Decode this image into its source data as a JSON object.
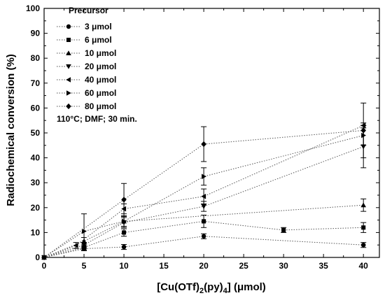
{
  "chart_data": {
    "type": "scatter",
    "xlabel": "[Cu(OTf)2(py)4] (μmol)",
    "xlabel_parts": {
      "a": "[Cu(OTf)",
      "b": "2",
      "c": "(py)",
      "d": "4",
      "e": "] (μmol)"
    },
    "ylabel": "Radiochemical conversion (%)",
    "xlim": [
      0,
      42
    ],
    "ylim": [
      0,
      100
    ],
    "xticks": [
      "0",
      "5",
      "10",
      "15",
      "20",
      "25",
      "30",
      "35",
      "40"
    ],
    "yticks": [
      "0",
      "10",
      "20",
      "30",
      "40",
      "50",
      "60",
      "70",
      "80",
      "90",
      "100"
    ],
    "legend_title": "Precursor",
    "legend_position": "top-left",
    "annotation": "110°C; DMF; 30 min.",
    "series": [
      {
        "name": "3 μmol",
        "marker": "circle",
        "points": [
          {
            "x": 0,
            "y": 0
          },
          {
            "x": 5,
            "y": 3.5,
            "err": 0.8
          },
          {
            "x": 10,
            "y": 4.2,
            "err": 1
          },
          {
            "x": 20,
            "y": 8.5,
            "err": 1
          },
          {
            "x": 40,
            "y": 5,
            "err": 1
          }
        ]
      },
      {
        "name": "6 μmol",
        "marker": "square",
        "points": [
          {
            "x": 0,
            "y": 0
          },
          {
            "x": 5,
            "y": 4,
            "err": 1
          },
          {
            "x": 10,
            "y": 10,
            "err": 1.5
          },
          {
            "x": 20,
            "y": 14.5,
            "err": 2.5
          },
          {
            "x": 30,
            "y": 11,
            "err": 1
          },
          {
            "x": 40,
            "y": 12,
            "err": 2
          }
        ]
      },
      {
        "name": "10 μmol",
        "marker": "triangle-up",
        "points": [
          {
            "x": 0,
            "y": 0
          },
          {
            "x": 5,
            "y": 6.5,
            "err": 1.5
          },
          {
            "x": 10,
            "y": 14.5,
            "err": 2
          },
          {
            "x": 40,
            "y": 21,
            "err": 2.5
          }
        ]
      },
      {
        "name": "20 μmol",
        "marker": "triangle-down",
        "points": [
          {
            "x": 0,
            "y": 0
          },
          {
            "x": 5,
            "y": 5,
            "err": 1
          },
          {
            "x": 10,
            "y": 14,
            "err": 2
          },
          {
            "x": 20,
            "y": 20.5,
            "err": 2
          },
          {
            "x": 40,
            "y": 44.5,
            "err": 8.5
          }
        ]
      },
      {
        "name": "40 μmol",
        "marker": "triangle-left",
        "points": [
          {
            "x": 0,
            "y": 0
          },
          {
            "x": 4,
            "y": 4.8,
            "err": 1.2
          },
          {
            "x": 10,
            "y": 19.5,
            "err": 2
          },
          {
            "x": 20,
            "y": 24.5,
            "err": 3
          },
          {
            "x": 40,
            "y": 53,
            "err": 1
          }
        ]
      },
      {
        "name": "60 μmol",
        "marker": "triangle-right",
        "points": [
          {
            "x": 0,
            "y": 0
          },
          {
            "x": 5,
            "y": 10.5,
            "err": 7
          },
          {
            "x": 10,
            "y": 14.5,
            "err": 2
          },
          {
            "x": 20,
            "y": 32.5,
            "err": 3.5
          },
          {
            "x": 40,
            "y": 49,
            "err": 4
          }
        ]
      },
      {
        "name": "80 μmol",
        "marker": "diamond",
        "points": [
          {
            "x": 0,
            "y": 0
          },
          {
            "x": 10,
            "y": 23.2,
            "err": 6.5
          },
          {
            "x": 20,
            "y": 45.5,
            "err": 7
          },
          {
            "x": 40,
            "y": 51,
            "err": 11
          }
        ]
      }
    ]
  }
}
